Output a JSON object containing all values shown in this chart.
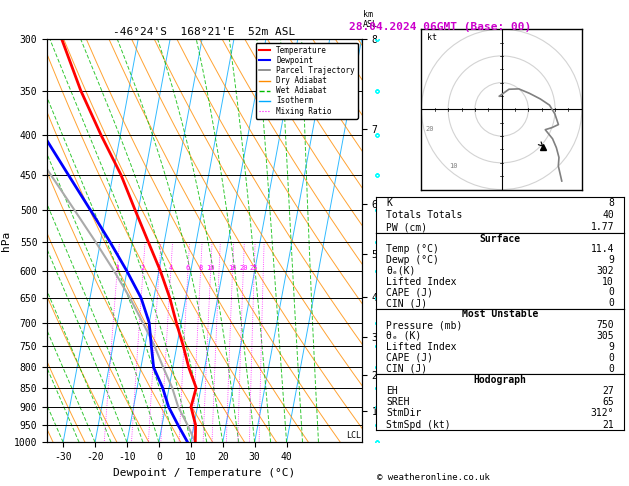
{
  "title": "-46°24'S  168°21'E  52m ASL",
  "date_title": "28.04.2024 06GMT (Base: 00)",
  "xlabel": "Dewpoint / Temperature (°C)",
  "ylabel_left": "hPa",
  "pressure_levels": [
    300,
    350,
    400,
    450,
    500,
    550,
    600,
    650,
    700,
    750,
    800,
    850,
    900,
    950,
    1000
  ],
  "temp_ticks": [
    -30,
    -20,
    -10,
    0,
    10,
    20,
    30,
    40
  ],
  "colors": {
    "temperature": "#ff0000",
    "dewpoint": "#0000ff",
    "parcel": "#aaaaaa",
    "dry_adiabat": "#ff8c00",
    "wet_adiabat": "#00bb00",
    "isotherm": "#00aaff",
    "mixing_ratio": "#ff00ff",
    "background": "#ffffff",
    "grid": "#000000"
  },
  "temperature_profile": {
    "pressure": [
      1000,
      950,
      900,
      850,
      800,
      750,
      700,
      650,
      600,
      550,
      500,
      450,
      400,
      350,
      300
    ],
    "temp": [
      11.4,
      10.5,
      8.0,
      8.5,
      5.0,
      2.0,
      -1.5,
      -5.0,
      -9.5,
      -15.0,
      -21.0,
      -27.5,
      -36.0,
      -45.0,
      -54.0
    ]
  },
  "dewpoint_profile": {
    "pressure": [
      1000,
      950,
      900,
      850,
      800,
      750,
      700,
      650,
      600,
      550,
      500,
      450,
      400,
      350,
      300
    ],
    "temp": [
      9.0,
      5.0,
      1.0,
      -2.0,
      -6.0,
      -8.0,
      -10.0,
      -14.0,
      -20.0,
      -27.0,
      -35.0,
      -44.0,
      -54.0,
      -63.0,
      -72.0
    ]
  },
  "parcel_profile": {
    "pressure": [
      1000,
      950,
      900,
      850,
      800,
      750,
      700,
      650,
      600,
      550,
      500,
      450,
      400
    ],
    "temp": [
      11.4,
      8.0,
      4.0,
      1.0,
      -3.0,
      -7.0,
      -12.0,
      -17.5,
      -24.0,
      -31.5,
      -40.0,
      -49.5,
      -60.0
    ]
  },
  "lcl_pressure": 980,
  "surface_data": {
    "K": 8,
    "Totals_Totals": 40,
    "PW_cm": 1.77,
    "Temp_C": 11.4,
    "Dewp_C": 9,
    "theta_e_K": 302,
    "Lifted_Index": 10,
    "CAPE_J": 0,
    "CIN_J": 0
  },
  "most_unstable": {
    "Pressure_mb": 750,
    "theta_e_K": 305,
    "Lifted_Index": 9,
    "CAPE_J": 0,
    "CIN_J": 0
  },
  "hodograph_data": {
    "EH": 27,
    "SREH": 65,
    "StmDir": 312,
    "StmSpd_kt": 21
  },
  "km_ticks": [
    1,
    2,
    3,
    4,
    5,
    6,
    7,
    8
  ],
  "km_pressures": [
    905,
    808,
    717,
    632,
    552,
    472,
    372,
    280
  ],
  "pmin": 300,
  "pmax": 1000,
  "skew": 45.0,
  "tmin": -35,
  "tmax": 40,
  "wind_data": [
    [
      1000,
      170,
      5
    ],
    [
      950,
      200,
      8
    ],
    [
      900,
      220,
      10
    ],
    [
      850,
      240,
      12
    ],
    [
      800,
      255,
      15
    ],
    [
      750,
      265,
      18
    ],
    [
      700,
      275,
      20
    ],
    [
      650,
      285,
      22
    ],
    [
      600,
      290,
      20
    ],
    [
      550,
      295,
      18
    ],
    [
      500,
      300,
      22
    ],
    [
      450,
      305,
      25
    ],
    [
      400,
      310,
      28
    ],
    [
      350,
      315,
      30
    ],
    [
      300,
      320,
      35
    ]
  ]
}
